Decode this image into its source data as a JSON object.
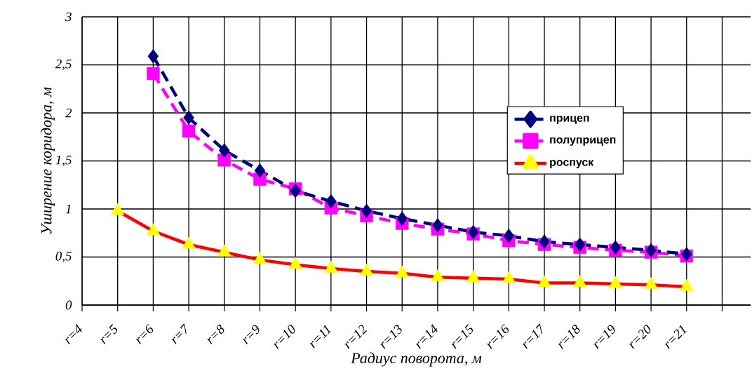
{
  "chart_data": {
    "type": "line",
    "xlabel": "Радиус поворота, м",
    "ylabel": "Уширение коридора, м",
    "categories": [
      "r=4",
      "r=5",
      "r=6",
      "r=7",
      "r=8",
      "r=9",
      "r=10",
      "r=11",
      "r=12",
      "r=13",
      "r=14",
      "r=15",
      "r=16",
      "r=17",
      "r=18",
      "r=19",
      "r=20",
      "r=21"
    ],
    "ylim": [
      0,
      3
    ],
    "yticks": [
      0,
      {
        "value": 0.5,
        "label": "0,5"
      },
      1,
      {
        "value": 1.5,
        "label": "1,5"
      },
      2,
      {
        "value": 2.5,
        "label": "2,5"
      },
      3
    ],
    "grid": true,
    "legend": "right",
    "series": [
      {
        "name": "прицеп",
        "color": "#000080",
        "marker": "diamond",
        "line_style": "dashed",
        "values": [
          null,
          null,
          2.59,
          1.95,
          1.61,
          1.4,
          1.19,
          1.08,
          0.98,
          0.9,
          0.83,
          0.76,
          0.72,
          0.66,
          0.63,
          0.6,
          0.57,
          0.53
        ]
      },
      {
        "name": "полуприцеп",
        "color": "#ff00ff",
        "marker": "square",
        "line_style": "dashed",
        "values": [
          null,
          null,
          2.41,
          1.81,
          1.51,
          1.31,
          1.21,
          1.01,
          0.93,
          0.85,
          0.79,
          0.74,
          0.67,
          0.63,
          0.6,
          0.57,
          0.55,
          0.51
        ]
      },
      {
        "name": "роспуск",
        "color": "#ff0000",
        "colors": [
          "#ffff00",
          "#ffff00",
          "#ffff00",
          "#ffff00",
          "#ffff00",
          "#ffff00",
          "#ffff00",
          "#ffff00",
          "#ffff00",
          "#ffff00",
          "#ffff00",
          "#ffff00",
          "#ffff00",
          "#ffff00",
          "#ffff00",
          "#ffff00",
          "#ffff00",
          "#ffff00"
        ],
        "marker": "triangle",
        "line_style": "solid",
        "values": [
          null,
          0.98,
          0.77,
          0.63,
          0.55,
          0.47,
          0.42,
          0.38,
          0.35,
          0.33,
          0.29,
          0.28,
          0.27,
          0.23,
          0.23,
          0.22,
          0.21,
          0.19
        ]
      }
    ]
  }
}
